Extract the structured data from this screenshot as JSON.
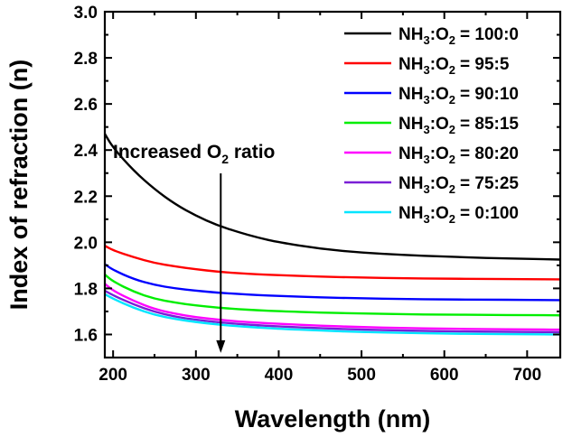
{
  "chart_data": {
    "type": "line",
    "xlabel": "Wavelength (nm)",
    "ylabel": "Index of refraction (n)",
    "xlim": [
      190,
      740
    ],
    "ylim": [
      1.5,
      3.0
    ],
    "x_ticks": [
      "200",
      "300",
      "400",
      "500",
      "600",
      "700"
    ],
    "y_ticks": [
      "1.6",
      "1.8",
      "2.0",
      "2.2",
      "2.4",
      "2.6",
      "2.8",
      "3.0"
    ],
    "grid": false,
    "legend_position": "top-right",
    "annotation": {
      "text_before": "Increased O",
      "text_sub": "2",
      "text_after": " ratio",
      "arrow_x": 330,
      "arrow_y_start": 2.05,
      "arrow_y_end": 1.52
    },
    "x": [
      190,
      200,
      225,
      250,
      275,
      300,
      325,
      350,
      375,
      400,
      450,
      500,
      550,
      600,
      650,
      700,
      740
    ],
    "series": [
      {
        "name": "NH3:O2 = 100:0",
        "legend": {
          "a": "NH",
          "a_sub": "3",
          "b": ":O",
          "b_sub": "2",
          "c": "= 100:0"
        },
        "color": "#000000",
        "values": [
          2.47,
          2.41,
          2.31,
          2.23,
          2.165,
          2.115,
          2.075,
          2.045,
          2.02,
          2.0,
          1.972,
          1.955,
          1.945,
          1.938,
          1.932,
          1.928,
          1.925
        ]
      },
      {
        "name": "NH3:O2 = 95:5",
        "legend": {
          "a": "NH",
          "a_sub": "3",
          "b": ":O",
          "b_sub": "2",
          "c": "= 95:5"
        },
        "color": "#ff0000",
        "values": [
          1.985,
          1.965,
          1.935,
          1.91,
          1.895,
          1.883,
          1.873,
          1.866,
          1.861,
          1.857,
          1.851,
          1.847,
          1.844,
          1.842,
          1.841,
          1.84,
          1.839
        ]
      },
      {
        "name": "NH3:O2 = 90:10",
        "legend": {
          "a": "NH",
          "a_sub": "3",
          "b": ":O",
          "b_sub": "2",
          "c": "= 90:10"
        },
        "color": "#0000ff",
        "values": [
          1.905,
          1.88,
          1.84,
          1.815,
          1.8,
          1.79,
          1.782,
          1.776,
          1.771,
          1.767,
          1.761,
          1.757,
          1.754,
          1.752,
          1.751,
          1.75,
          1.749
        ]
      },
      {
        "name": "NH3:O2 = 85:15",
        "legend": {
          "a": "NH",
          "a_sub": "3",
          "b": ":O",
          "b_sub": "2",
          "c": "= 85:15"
        },
        "color": "#00ee00",
        "values": [
          1.86,
          1.83,
          1.785,
          1.755,
          1.738,
          1.726,
          1.717,
          1.71,
          1.705,
          1.701,
          1.695,
          1.691,
          1.688,
          1.686,
          1.685,
          1.684,
          1.683
        ]
      },
      {
        "name": "NH3:O2 = 80:20",
        "legend": {
          "a": "NH",
          "a_sub": "3",
          "b": ":O",
          "b_sub": "2",
          "c": "= 80:20"
        },
        "color": "#ff00ff",
        "values": [
          1.82,
          1.79,
          1.745,
          1.71,
          1.69,
          1.675,
          1.665,
          1.657,
          1.651,
          1.646,
          1.638,
          1.632,
          1.628,
          1.625,
          1.623,
          1.622,
          1.621
        ]
      },
      {
        "name": "NH3:O2 = 75:25",
        "legend": {
          "a": "NH",
          "a_sub": "3",
          "b": ":O",
          "b_sub": "2",
          "c": "= 75:25"
        },
        "color": "#7a1fd6",
        "values": [
          1.79,
          1.77,
          1.73,
          1.698,
          1.677,
          1.664,
          1.654,
          1.646,
          1.64,
          1.635,
          1.627,
          1.621,
          1.617,
          1.614,
          1.612,
          1.611,
          1.61
        ]
      },
      {
        "name": "NH3:O2 = 0:100",
        "legend": {
          "a": "NH",
          "a_sub": "3",
          "b": ":O",
          "b_sub": "2",
          "c": "= 0:100"
        },
        "color": "#00e5ff",
        "values": [
          1.775,
          1.755,
          1.715,
          1.685,
          1.667,
          1.654,
          1.644,
          1.636,
          1.63,
          1.625,
          1.617,
          1.611,
          1.607,
          1.604,
          1.602,
          1.601,
          1.6
        ]
      }
    ]
  }
}
